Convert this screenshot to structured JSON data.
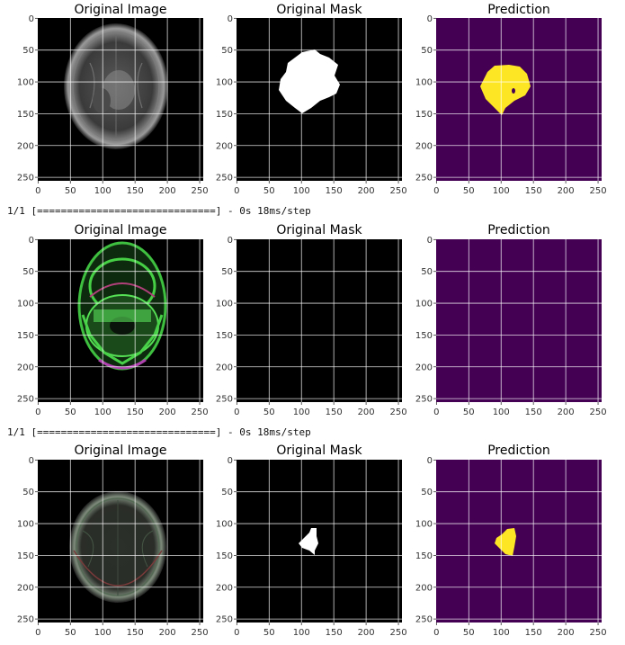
{
  "panel_titles": [
    "Original Image",
    "Original Mask",
    "Prediction"
  ],
  "x_ticks": [
    "0",
    "50",
    "100",
    "150",
    "200",
    "250"
  ],
  "y_ticks": [
    "0",
    "50",
    "100",
    "150",
    "200",
    "250"
  ],
  "log_lines": [
    "1/1 [==============================] - 0s 18ms/step",
    "1/1 [==============================] - 0s 18ms/step"
  ],
  "colors": {
    "mask_background": "#000000",
    "mask_foreground": "#ffffff",
    "prediction_background": "#440154",
    "prediction_foreground": "#fde725",
    "grid": "#ffffff"
  },
  "rows": [
    {
      "image": "axial-brain-mri-grayscale",
      "mask": "lesion-mask-large",
      "prediction": "predicted-lesion-large"
    },
    {
      "image": "axial-head-slice-green-tinted",
      "mask": "empty-mask",
      "prediction": "empty-prediction"
    },
    {
      "image": "axial-brain-mri-top-slice",
      "mask": "lesion-mask-small",
      "prediction": "predicted-lesion-small"
    }
  ]
}
